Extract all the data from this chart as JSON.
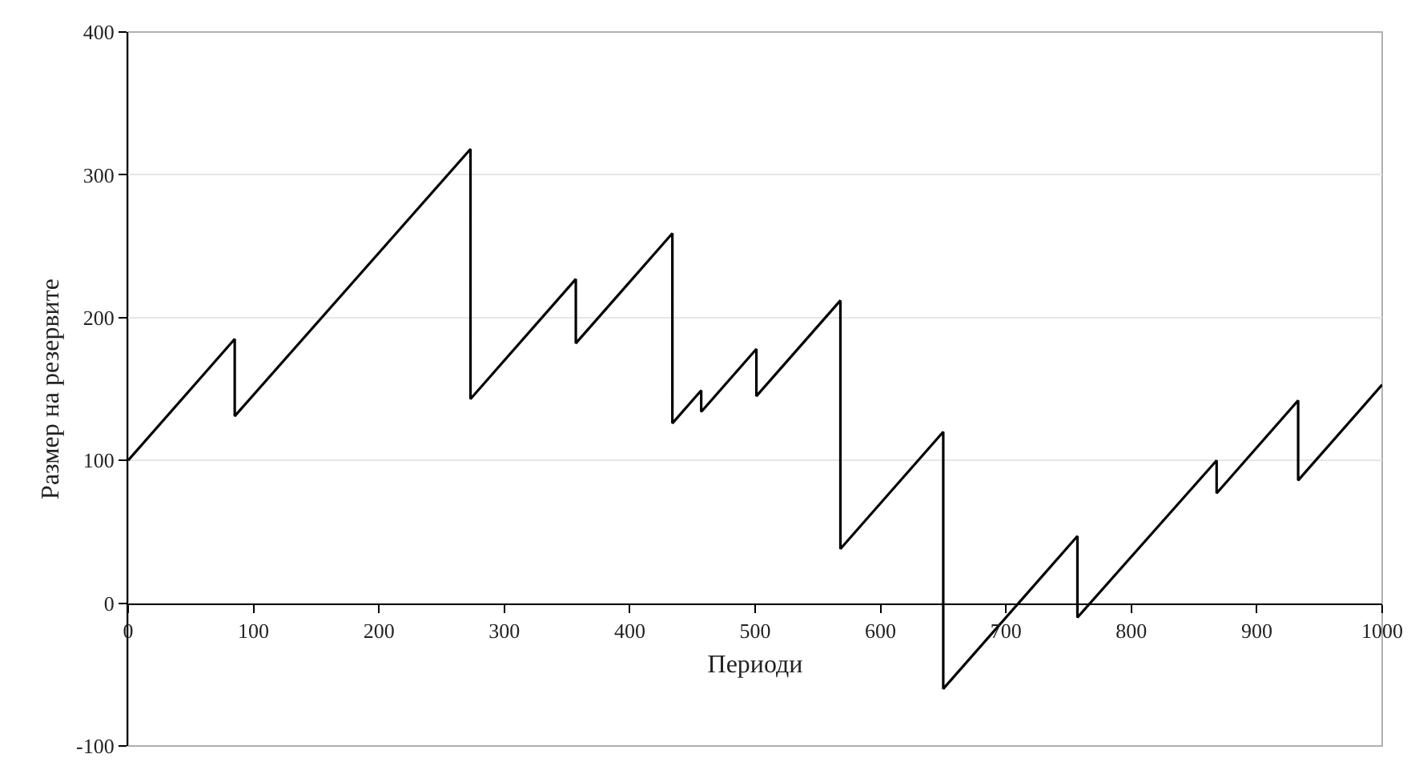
{
  "chart_data": {
    "type": "line",
    "xlabel": "Периоди",
    "ylabel": "Размер на резервите",
    "x": [
      0,
      85,
      85,
      273,
      273,
      357,
      357,
      434,
      434,
      457,
      457,
      501,
      501,
      568,
      568,
      650,
      650,
      757,
      757,
      868,
      868,
      933,
      933,
      1000
    ],
    "series": [
      {
        "color": "#000000",
        "values": [
          100,
          185,
          131,
          318,
          143,
          227,
          182,
          259,
          126,
          149,
          134,
          178,
          145,
          212,
          38,
          120,
          -60,
          47,
          -10,
          100,
          77,
          142,
          86,
          153
        ]
      }
    ],
    "xlim": [
      0,
      1000
    ],
    "xticks": [
      0,
      100,
      200,
      300,
      400,
      500,
      600,
      700,
      800,
      900,
      1000
    ],
    "ylim": [
      -100,
      400
    ],
    "yticks": [
      -100,
      0,
      100,
      200,
      300,
      400
    ],
    "grid": "y",
    "marker": "none",
    "line_style": "solid"
  }
}
